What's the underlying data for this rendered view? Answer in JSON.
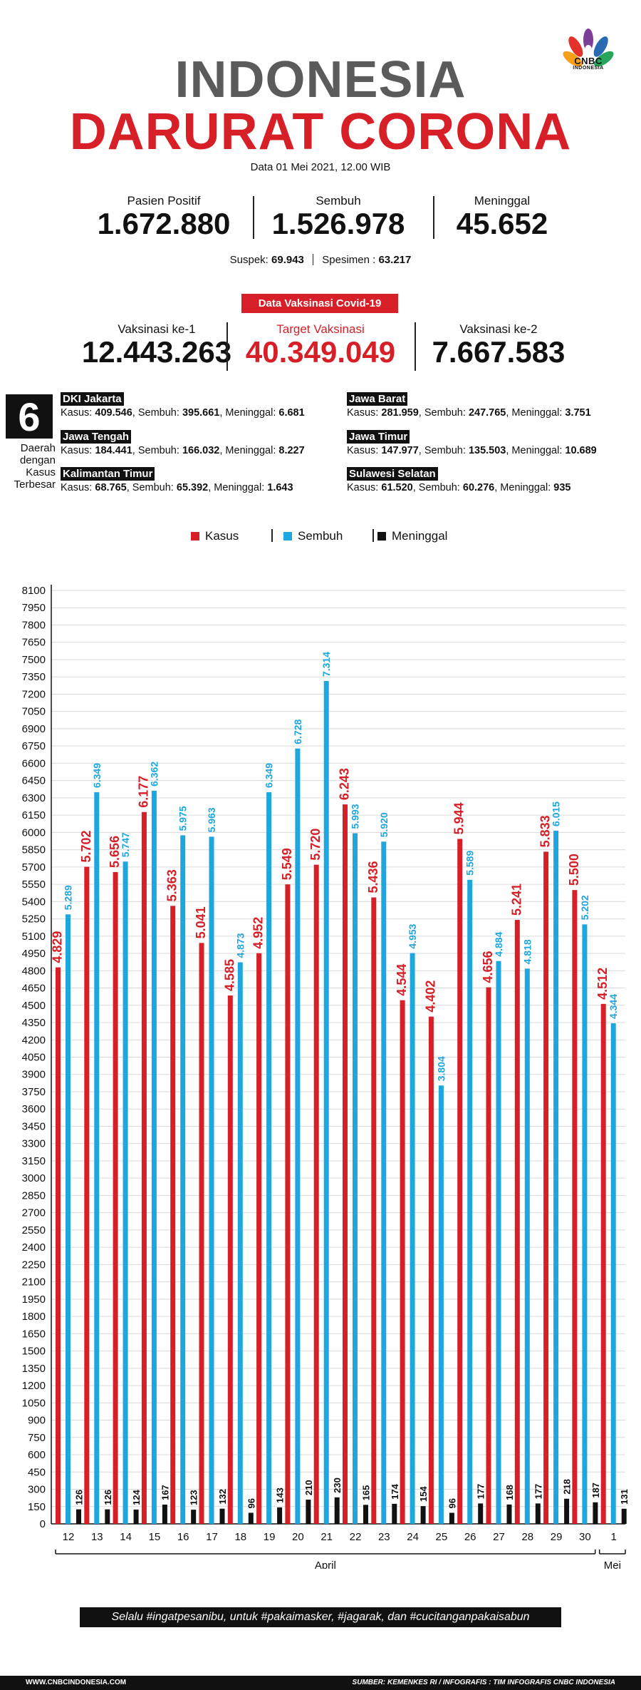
{
  "brand": {
    "name": "CNBC",
    "sub": "INDONESIA"
  },
  "title": {
    "line1": "INDONESIA",
    "line2": "DARURAT CORONA"
  },
  "date": "Data 01 Mei  2021, 12.00 WIB",
  "stats": [
    {
      "label": "Pasien Positif",
      "value": "1.672.880"
    },
    {
      "label": "Sembuh",
      "value": "1.526.978"
    },
    {
      "label": "Meninggal",
      "value": "45.652"
    }
  ],
  "suspek": {
    "label": "Suspek:",
    "value": "69.943",
    "spes_label": "Spesimen :",
    "spes_value": "63.217"
  },
  "vaksin": {
    "badge": "Data Vaksinasi Covid-19",
    "items": [
      {
        "label": "Vaksinasi ke-1",
        "value": "12.443.263"
      },
      {
        "label": "Target Vaksinasi",
        "value": "40.349.049"
      },
      {
        "label": "Vaksinasi ke-2",
        "value": "7.667.583"
      }
    ]
  },
  "daerah": {
    "count": "6",
    "caption": [
      "Daerah",
      "dengan",
      "Kasus",
      "Terbesar"
    ],
    "provinces": [
      {
        "name": "DKI Jakarta",
        "kasus": "409.546",
        "sembuh": "395.661",
        "meninggal": "6.681"
      },
      {
        "name": "Jawa Barat",
        "kasus": "281.959",
        "sembuh": "247.765",
        "meninggal": "3.751"
      },
      {
        "name": "Jawa Tengah",
        "kasus": "184.441",
        "sembuh": "166.032",
        "meninggal": "8.227"
      },
      {
        "name": "Jawa Timur",
        "kasus": "147.977",
        "sembuh": "135.503",
        "meninggal": "10.689"
      },
      {
        "name": "Kalimantan Timur",
        "kasus": "68.765",
        "sembuh": "65.392",
        "meninggal": "1.643"
      },
      {
        "name": "Sulawesi Selatan",
        "kasus": "61.520",
        "sembuh": "60.276",
        "meninggal": "935"
      }
    ],
    "labels": {
      "kasus": "Kasus:",
      "sembuh": "Sembuh:",
      "meninggal": "Meninggal:"
    }
  },
  "colors": {
    "kasus": "#d71f27",
    "sembuh": "#1ea6df",
    "meninggal": "#111111",
    "grid": "#d9d9d9"
  },
  "chart_data": {
    "type": "bar",
    "categories": [
      "12",
      "13",
      "14",
      "15",
      "16",
      "17",
      "18",
      "19",
      "20",
      "21",
      "22",
      "23",
      "24",
      "25",
      "26",
      "27",
      "28",
      "29",
      "30",
      "1"
    ],
    "series": [
      {
        "name": "Kasus",
        "values": [
          4829,
          5702,
          5656,
          6177,
          5363,
          5041,
          4585,
          4952,
          5549,
          5720,
          6243,
          5436,
          4544,
          4402,
          5944,
          4656,
          5241,
          5833,
          5500,
          4512
        ],
        "labels": [
          "4.829",
          "5.702",
          "5.656",
          "6.177",
          "5.363",
          "5.041",
          "4.585",
          "4.952",
          "5.549",
          "5.720",
          "6.243",
          "5.436",
          "4.544",
          "4.402",
          "5.944",
          "4.656",
          "5.241",
          "5.833",
          "5.500",
          "4.512"
        ]
      },
      {
        "name": "Sembuh",
        "values": [
          5289,
          6349,
          5747,
          6362,
          5975,
          5963,
          4873,
          6349,
          6728,
          7314,
          5993,
          5920,
          4953,
          3804,
          5589,
          4884,
          4818,
          6015,
          5202,
          4344
        ],
        "labels": [
          "5.289",
          "6.349",
          "5.747",
          "6.362",
          "5.975",
          "5.963",
          "4.873",
          "6.349",
          "6.728",
          "7.314",
          "5.993",
          "5.920",
          "4.953",
          "3.804",
          "5.589",
          "4.884",
          "4.818",
          "6.015",
          "5.202",
          "4.344"
        ]
      },
      {
        "name": "Meninggal",
        "values": [
          126,
          126,
          124,
          167,
          123,
          132,
          96,
          143,
          210,
          230,
          165,
          174,
          154,
          96,
          177,
          168,
          177,
          218,
          187,
          131
        ],
        "labels": [
          "126",
          "126",
          "124",
          "167",
          "123",
          "132",
          "96",
          "143",
          "210",
          "230",
          "165",
          "174",
          "154",
          "96",
          "177",
          "168",
          "177",
          "218",
          "187",
          "131"
        ]
      }
    ],
    "yticks": [
      "8100",
      "7950",
      "7800",
      "7650",
      "7500",
      "7350",
      "7200",
      "7050",
      "6900",
      "6750",
      "6600",
      "6450",
      "6300",
      "6150",
      "6000",
      "5850",
      "5700",
      "5550",
      "5400",
      "5250",
      "5100",
      "4950",
      "4800",
      "4650",
      "4500",
      "4350",
      "4200",
      "4050",
      "3900",
      "3750",
      "3600",
      "3450",
      "3300",
      "3150",
      "3000",
      "2850",
      "2700",
      "2550",
      "2400",
      "2250",
      "2100",
      "1950",
      "1800",
      "1650",
      "1500",
      "1350",
      "1200",
      "1050",
      "900",
      "750",
      "600",
      "450",
      "300",
      "150",
      "0"
    ],
    "ylim": [
      0,
      8100
    ],
    "month_groups": [
      {
        "label": "April"
      },
      {
        "label": "Mei"
      }
    ],
    "legend": [
      "Kasus",
      "Sembuh",
      "Meninggal"
    ]
  },
  "footer": {
    "banner": "Selalu #ingatpesanibu, untuk #pakaimasker, #jagarak, dan #cucitanganpakaisabun",
    "website": "WWW.CNBCINDONESIA.COM",
    "source": "SUMBER: KEMENKES RI / INFOGRAFIS : TIM INFOGRAFIS CNBC INDONESIA"
  }
}
